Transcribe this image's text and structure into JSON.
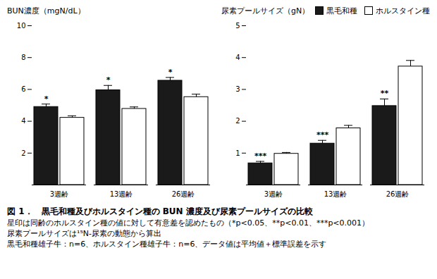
{
  "title": "図 1．　黒毛和種及びホルスタイン種の BUN 濃度及び尿素プールサイズの比較",
  "annotations": [
    "星印は同齢のホルスタイン種の値に対して有意差を認めたもの（*p<0.05、**p<0.01、***p<0.001）",
    "尿素プールサイズは¹⁵N-尿素の動態から算出",
    "黒毛和種雄子牛：n=6、ホルスタイン種雄子牛：n=6、データ値は平均値＋標準誤差を示す"
  ],
  "chart_data": [
    {
      "type": "bar",
      "title": "BUN濃度（mgN/dL）",
      "categories": [
        "3週齢",
        "13週齢",
        "26週齢"
      ],
      "series": [
        {
          "name": "黒毛和種",
          "color": "#1a1a1a",
          "values": [
            4.9,
            5.95,
            6.55
          ],
          "errors": [
            0.18,
            0.3,
            0.2
          ]
        },
        {
          "name": "ホルスタイン種",
          "color": "#ffffff",
          "values": [
            4.22,
            4.78,
            5.52
          ],
          "errors": [
            0.12,
            0.12,
            0.18
          ]
        }
      ],
      "ylim": [
        0,
        10
      ],
      "yticks": [
        2,
        4,
        6,
        8,
        10
      ],
      "grid": false,
      "annotations": [
        {
          "category": "3週齢",
          "series": "黒毛和種",
          "text": "*"
        },
        {
          "category": "13週齢",
          "series": "黒毛和種",
          "text": "*"
        },
        {
          "category": "26週齢",
          "series": "黒毛和種",
          "text": "*"
        }
      ]
    },
    {
      "type": "bar",
      "title": "尿素プールサイズ（gN）",
      "categories": [
        "3週齢",
        "13週齢",
        "26週齢"
      ],
      "series": [
        {
          "name": "黒毛和種",
          "color": "#1a1a1a",
          "values": [
            0.68,
            1.3,
            2.48
          ],
          "errors": [
            0.06,
            0.1,
            0.22
          ]
        },
        {
          "name": "ホルスタイン種",
          "color": "#ffffff",
          "values": [
            0.98,
            1.78,
            3.72
          ],
          "errors": [
            0.04,
            0.09,
            0.19
          ]
        }
      ],
      "ylim": [
        0,
        5
      ],
      "yticks": [
        1,
        2,
        3,
        4,
        5
      ],
      "grid": false,
      "legend": "upper right",
      "annotations": [
        {
          "category": "3週齢",
          "series": "黒毛和種",
          "text": "***"
        },
        {
          "category": "13週齢",
          "series": "黒毛和種",
          "text": "***"
        },
        {
          "category": "26週齢",
          "series": "黒毛和種",
          "text": "**"
        }
      ]
    }
  ]
}
